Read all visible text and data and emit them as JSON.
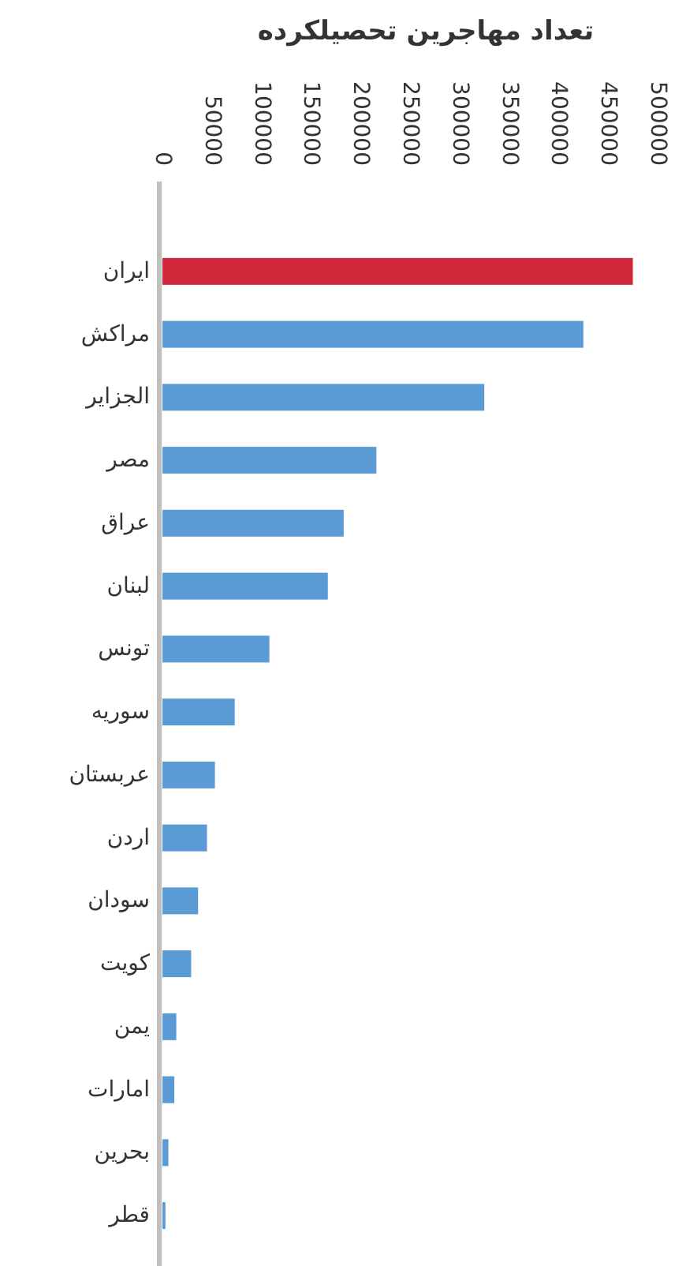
{
  "chart_data": {
    "type": "bar",
    "orientation": "horizontal",
    "title": "تعداد مهاجرین تحصیلکرده",
    "categories": [
      "ایران",
      "مراکش",
      "الجزایر",
      "مصر",
      "عراق",
      "لبنان",
      "تونس",
      "سوریه",
      "عربستان",
      "اردن",
      "سودان",
      "کویت",
      "یمن",
      "امارات",
      "بحرین",
      "قطر"
    ],
    "values": [
      475000,
      425000,
      325000,
      216000,
      183000,
      167000,
      108000,
      73000,
      53000,
      45000,
      36000,
      29000,
      14000,
      12000,
      6000,
      3000
    ],
    "colors": [
      "#d0283a",
      "#5b9bd5",
      "#5b9bd5",
      "#5b9bd5",
      "#5b9bd5",
      "#5b9bd5",
      "#5b9bd5",
      "#5b9bd5",
      "#5b9bd5",
      "#5b9bd5",
      "#5b9bd5",
      "#5b9bd5",
      "#5b9bd5",
      "#5b9bd5",
      "#5b9bd5",
      "#5b9bd5"
    ],
    "xlim": [
      0,
      500000
    ],
    "xticks": [
      0,
      50000,
      100000,
      150000,
      200000,
      250000,
      300000,
      350000,
      400000,
      450000,
      500000
    ]
  }
}
